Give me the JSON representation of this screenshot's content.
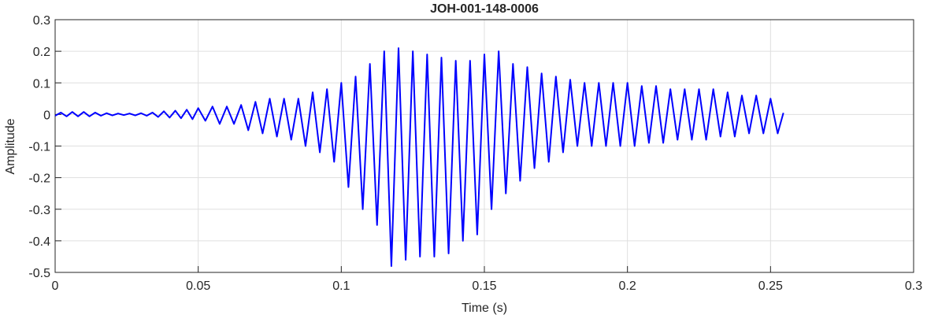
{
  "chart_data": {
    "type": "line",
    "title": "JOH-001-148-0006",
    "x_label": "Time (s)",
    "y_label": "Amplitude",
    "xlim": [
      0,
      0.3
    ],
    "ylim": [
      -0.5,
      0.3
    ],
    "xticks": [
      0,
      0.05,
      0.1,
      0.15,
      0.2,
      0.25,
      0.3
    ],
    "yticks": [
      -0.5,
      -0.4,
      -0.3,
      -0.2,
      -0.1,
      0,
      0.1,
      0.2,
      0.3
    ],
    "grid": true,
    "series": [
      {
        "color": "#0000ff",
        "x": [
          0,
          0.002,
          0.004,
          0.006,
          0.008,
          0.01,
          0.012,
          0.014,
          0.016,
          0.018,
          0.02,
          0.022,
          0.024,
          0.026,
          0.028,
          0.03,
          0.032,
          0.034,
          0.036,
          0.038,
          0.04,
          0.042,
          0.044,
          0.046,
          0.048,
          0.05,
          0.0525,
          0.055,
          0.0575,
          0.06,
          0.0625,
          0.065,
          0.0675,
          0.07,
          0.0725,
          0.075,
          0.0775,
          0.08,
          0.0825,
          0.085,
          0.0875,
          0.09,
          0.0925,
          0.095,
          0.0975,
          0.1,
          0.1025,
          0.105,
          0.1075,
          0.11,
          0.1125,
          0.115,
          0.1175,
          0.12,
          0.1225,
          0.125,
          0.1275,
          0.13,
          0.1325,
          0.135,
          0.1375,
          0.14,
          0.1425,
          0.145,
          0.1475,
          0.15,
          0.1525,
          0.155,
          0.1575,
          0.16,
          0.1625,
          0.165,
          0.1675,
          0.17,
          0.1725,
          0.175,
          0.1775,
          0.18,
          0.1825,
          0.185,
          0.1875,
          0.19,
          0.1925,
          0.195,
          0.1975,
          0.2,
          0.2025,
          0.205,
          0.2075,
          0.21,
          0.2125,
          0.215,
          0.2175,
          0.22,
          0.2225,
          0.225,
          0.2275,
          0.23,
          0.2325,
          0.235,
          0.2375,
          0.24,
          0.2425,
          0.245,
          0.2475,
          0.25,
          0.2525,
          0.2545
        ],
        "values": [
          -0.004,
          0.006,
          -0.006,
          0.008,
          -0.006,
          0.008,
          -0.006,
          0.006,
          -0.004,
          0.004,
          -0.003,
          0.003,
          -0.002,
          0.003,
          -0.003,
          0.004,
          -0.004,
          0.006,
          -0.008,
          0.01,
          -0.01,
          0.012,
          -0.012,
          0.015,
          -0.015,
          0.02,
          -0.02,
          0.025,
          -0.03,
          0.025,
          -0.03,
          0.03,
          -0.05,
          0.04,
          -0.06,
          0.05,
          -0.07,
          0.05,
          -0.08,
          0.05,
          -0.1,
          0.07,
          -0.12,
          0.08,
          -0.15,
          0.1,
          -0.23,
          0.12,
          -0.3,
          0.16,
          -0.35,
          0.2,
          -0.48,
          0.21,
          -0.46,
          0.2,
          -0.45,
          0.19,
          -0.45,
          0.18,
          -0.44,
          0.17,
          -0.4,
          0.17,
          -0.38,
          0.19,
          -0.3,
          0.2,
          -0.25,
          0.16,
          -0.21,
          0.15,
          -0.17,
          0.13,
          -0.15,
          0.12,
          -0.12,
          0.11,
          -0.1,
          0.1,
          -0.1,
          0.1,
          -0.1,
          0.1,
          -0.1,
          0.1,
          -0.1,
          0.09,
          -0.09,
          0.09,
          -0.09,
          0.08,
          -0.08,
          0.08,
          -0.08,
          0.08,
          -0.08,
          0.08,
          -0.07,
          0.07,
          -0.07,
          0.06,
          -0.06,
          0.06,
          -0.06,
          0.05,
          -0.06,
          0.005
        ]
      }
    ]
  }
}
